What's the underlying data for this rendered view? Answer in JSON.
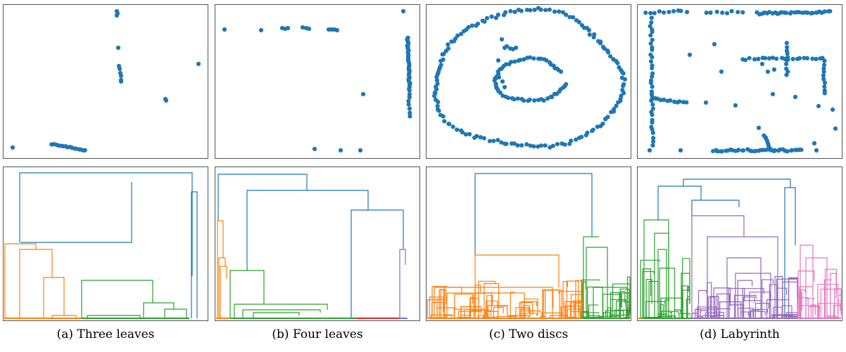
{
  "figure": {
    "captions": [
      "(a) Three leaves",
      "(b) Four leaves",
      "(c) Two discs",
      "(d) Labyrinth"
    ]
  },
  "colors": {
    "points": "#1f77b4",
    "link_blue": "#1f77b4",
    "link_orange": "#ff7f0e",
    "link_green": "#2ca02c",
    "link_red": "#d62728",
    "link_purple": "#9467bd",
    "link_pink": "#e377c2",
    "frame": "#555555"
  },
  "chart_data": [
    {
      "type": "scatter",
      "panel": "three-leaves"
    },
    {
      "type": "scatter",
      "panel": "four-leaves"
    },
    {
      "type": "scatter",
      "panel": "two-discs"
    },
    {
      "type": "scatter",
      "panel": "labyrinth"
    },
    {
      "type": "dendrogram",
      "panel": "three-leaves"
    },
    {
      "type": "dendrogram",
      "panel": "four-leaves"
    },
    {
      "type": "dendrogram",
      "panel": "two-discs"
    },
    {
      "type": "dendrogram",
      "panel": "labyrinth"
    }
  ]
}
